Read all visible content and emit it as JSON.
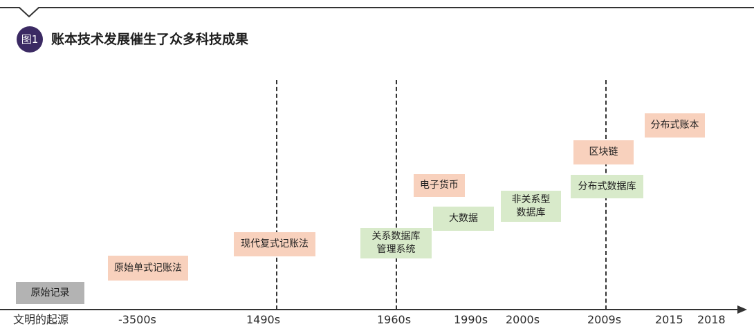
{
  "figure": {
    "badge": "图1",
    "title": "账本技术发展催生了众多科技成果"
  },
  "axis_labels": [
    "文明的起源",
    "-3500s",
    "1490s",
    "1960s",
    "1990s",
    "2000s",
    "2009s",
    "2015",
    "2018"
  ],
  "milestones": [
    {
      "label": "原始记录",
      "category": "grey"
    },
    {
      "label": "原始单式记账法",
      "category": "orange"
    },
    {
      "label": "现代复式记账法",
      "category": "orange"
    },
    {
      "label_lines": [
        "关系数据库",
        "管理系统"
      ],
      "category": "green"
    },
    {
      "label": "电子货币",
      "category": "orange"
    },
    {
      "label": "大数据",
      "category": "green"
    },
    {
      "label_lines": [
        "非关系型",
        "数据库"
      ],
      "category": "green"
    },
    {
      "label": "区块链",
      "category": "orange"
    },
    {
      "label": "分布式数据库",
      "category": "green"
    },
    {
      "label": "分布式账本",
      "category": "orange"
    }
  ],
  "colors": {
    "orange": "#f8d1bd",
    "green": "#d8eaca",
    "grey": "#b3b3b3",
    "badge": "#3b2a63",
    "line": "#333333"
  }
}
